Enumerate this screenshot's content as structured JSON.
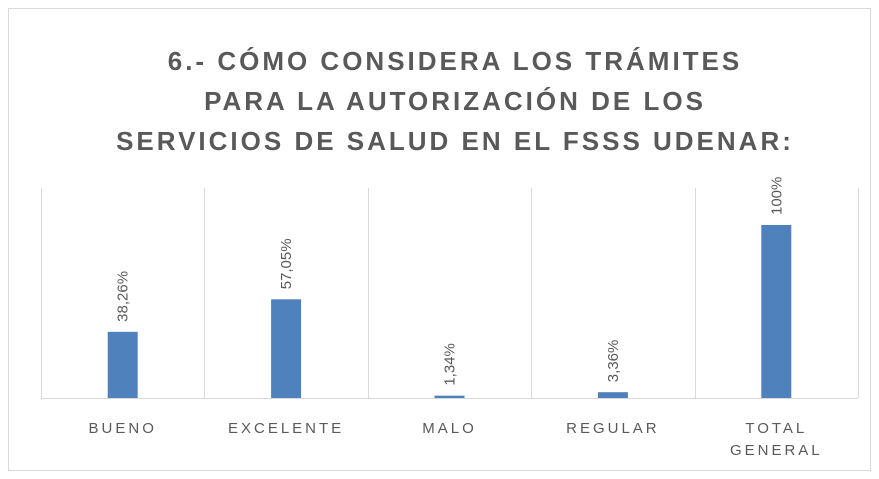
{
  "chart_data": {
    "type": "bar",
    "title": [
      "6.- CÓMO CONSIDERA LOS TRÁMITES",
      "PARA LA AUTORIZACIÓN DE LOS",
      "SERVICIOS DE SALUD EN EL FSSS UDENAR:"
    ],
    "categories": [
      "BUENO",
      "EXCELENTE",
      "MALO",
      "REGULAR",
      "TOTAL GENERAL"
    ],
    "values": [
      38.26,
      57.05,
      1.34,
      3.36,
      100
    ],
    "value_labels": [
      "38,26%",
      "57,05%",
      "1,34%",
      "3,36%",
      "100%"
    ],
    "color": "#4f81bd"
  }
}
